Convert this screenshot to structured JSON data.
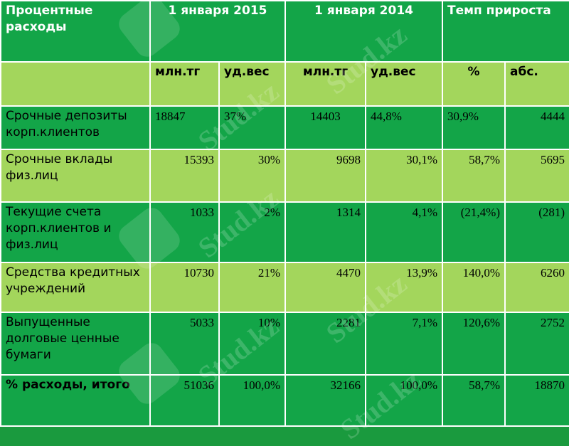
{
  "header": {
    "col_label": "Процентные расходы",
    "period1": "1 января 2015",
    "period2": "1 января 2014",
    "growth": "Темп прироста"
  },
  "subheader": {
    "mln1": "млн.тг",
    "share1": "уд.вес",
    "mln2": "млн.тг",
    "share2": "уд.вес",
    "pct": "%",
    "abs": "абс."
  },
  "rows": [
    {
      "label": "Срочные депозиты корп.клиентов",
      "v2015": "18847",
      "s2015": "37%",
      "v2014": "14403",
      "s2014": "44,8%",
      "pct": "30,9%",
      "abs": "4444"
    },
    {
      "label": "Срочные вклады физ.лиц",
      "v2015": "15393",
      "s2015": "30%",
      "v2014": "9698",
      "s2014": "30,1%",
      "pct": "58,7%",
      "abs": "5695"
    },
    {
      "label": "Текущие счета корп.клиентов и физ.лиц",
      "v2015": "1033",
      "s2015": "2%",
      "v2014": "1314",
      "s2014": "4,1%",
      "pct": "(21,4%)",
      "abs": "(281)"
    },
    {
      "label": "Средства кредитных учреждений",
      "v2015": "10730",
      "s2015": "21%",
      "v2014": "4470",
      "s2014": "13,9%",
      "pct": "140,0%",
      "abs": "6260"
    },
    {
      "label": "Выпущенные долговые ценные бумаги",
      "v2015": "5033",
      "s2015": "10%",
      "v2014": "2281",
      "s2014": "7,1%",
      "pct": "120,6%",
      "abs": "2752"
    },
    {
      "label": "% расходы, итого",
      "v2015": "51036",
      "s2015": "100,0%",
      "v2014": "32166",
      "s2014": "100,0%",
      "pct": "58,7%",
      "abs": "18870"
    }
  ],
  "watermark": "Stud.kz"
}
